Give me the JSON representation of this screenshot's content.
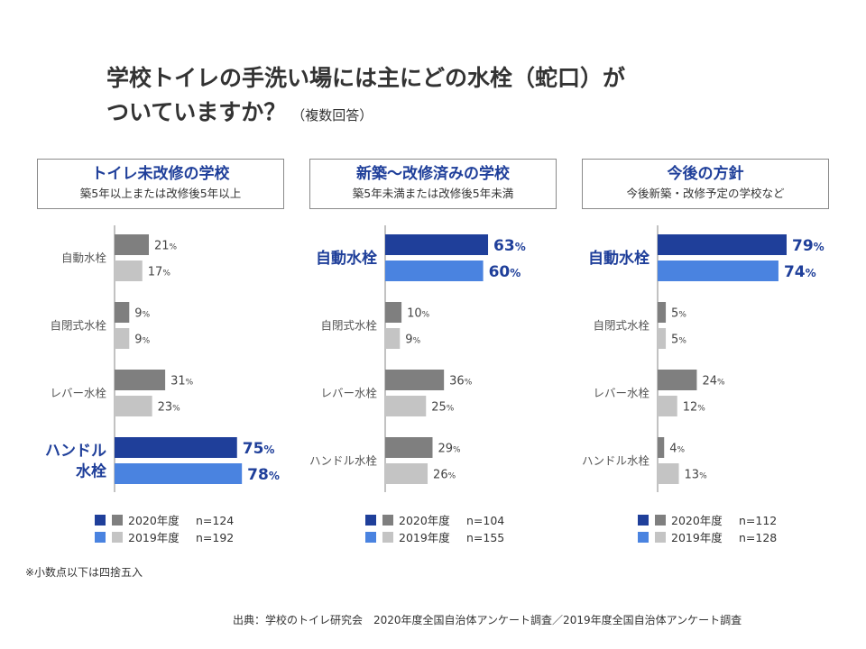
{
  "title": {
    "line1": "学校トイレの手洗い場には主にどの水栓（蛇口）が",
    "line2": "ついていますか？",
    "note": "（複数回答）"
  },
  "footnote": "※小数点以下は四捨五入",
  "source": "出典：学校のトイレ研究会　2020年度全国自治体アンケート調査／2019年度全国自治体アンケート調査",
  "colors": {
    "dark_highlight": "#1f3f9a",
    "light_highlight": "#4a83e0",
    "dark_gray": "#7f7f7f",
    "light_gray": "#c4c4c4",
    "axis": "#9a9a9a"
  },
  "chart_data": [
    {
      "type": "bar",
      "orientation": "horizontal",
      "title": "トイレ未改修の学校",
      "subtitle": "築5年以上または改修後5年以上",
      "categories": [
        "自動水栓",
        "自閉式水栓",
        "レバー水栓",
        "ハンドル水栓"
      ],
      "category_labels": [
        [
          "自動水栓"
        ],
        [
          "自閉式水栓"
        ],
        [
          "レバー水栓"
        ],
        [
          "ハンドル",
          "水栓"
        ]
      ],
      "highlight_index": 3,
      "series": [
        {
          "name": "2020年度",
          "values": [
            21,
            9,
            31,
            75
          ]
        },
        {
          "name": "2019年度",
          "values": [
            17,
            9,
            23,
            78
          ]
        }
      ],
      "legend": [
        {
          "label": "2020年度",
          "n": "n=124"
        },
        {
          "label": "2019年度",
          "n": "n=192"
        }
      ],
      "unit": "%"
    },
    {
      "type": "bar",
      "orientation": "horizontal",
      "title": "新築〜改修済みの学校",
      "subtitle": "築5年未満または改修後5年未満",
      "categories": [
        "自動水栓",
        "自閉式水栓",
        "レバー水栓",
        "ハンドル水栓"
      ],
      "category_labels": [
        [
          "自動水栓"
        ],
        [
          "自閉式水栓"
        ],
        [
          "レバー水栓"
        ],
        [
          "ハンドル水栓"
        ]
      ],
      "highlight_index": 0,
      "series": [
        {
          "name": "2020年度",
          "values": [
            63,
            10,
            36,
            29
          ]
        },
        {
          "name": "2019年度",
          "values": [
            60,
            9,
            25,
            26
          ]
        }
      ],
      "legend": [
        {
          "label": "2020年度",
          "n": "n=104"
        },
        {
          "label": "2019年度",
          "n": "n=155"
        }
      ],
      "unit": "%"
    },
    {
      "type": "bar",
      "orientation": "horizontal",
      "title": "今後の方針",
      "subtitle": "今後新築・改修予定の学校など",
      "categories": [
        "自動水栓",
        "自閉式水栓",
        "レバー水栓",
        "ハンドル水栓"
      ],
      "category_labels": [
        [
          "自動水栓"
        ],
        [
          "自閉式水栓"
        ],
        [
          "レバー水栓"
        ],
        [
          "ハンドル水栓"
        ]
      ],
      "highlight_index": 0,
      "series": [
        {
          "name": "2020年度",
          "values": [
            79,
            5,
            24,
            4
          ]
        },
        {
          "name": "2019年度",
          "values": [
            74,
            5,
            12,
            13
          ]
        }
      ],
      "legend": [
        {
          "label": "2020年度",
          "n": "n=112"
        },
        {
          "label": "2019年度",
          "n": "n=128"
        }
      ],
      "unit": "%"
    }
  ]
}
